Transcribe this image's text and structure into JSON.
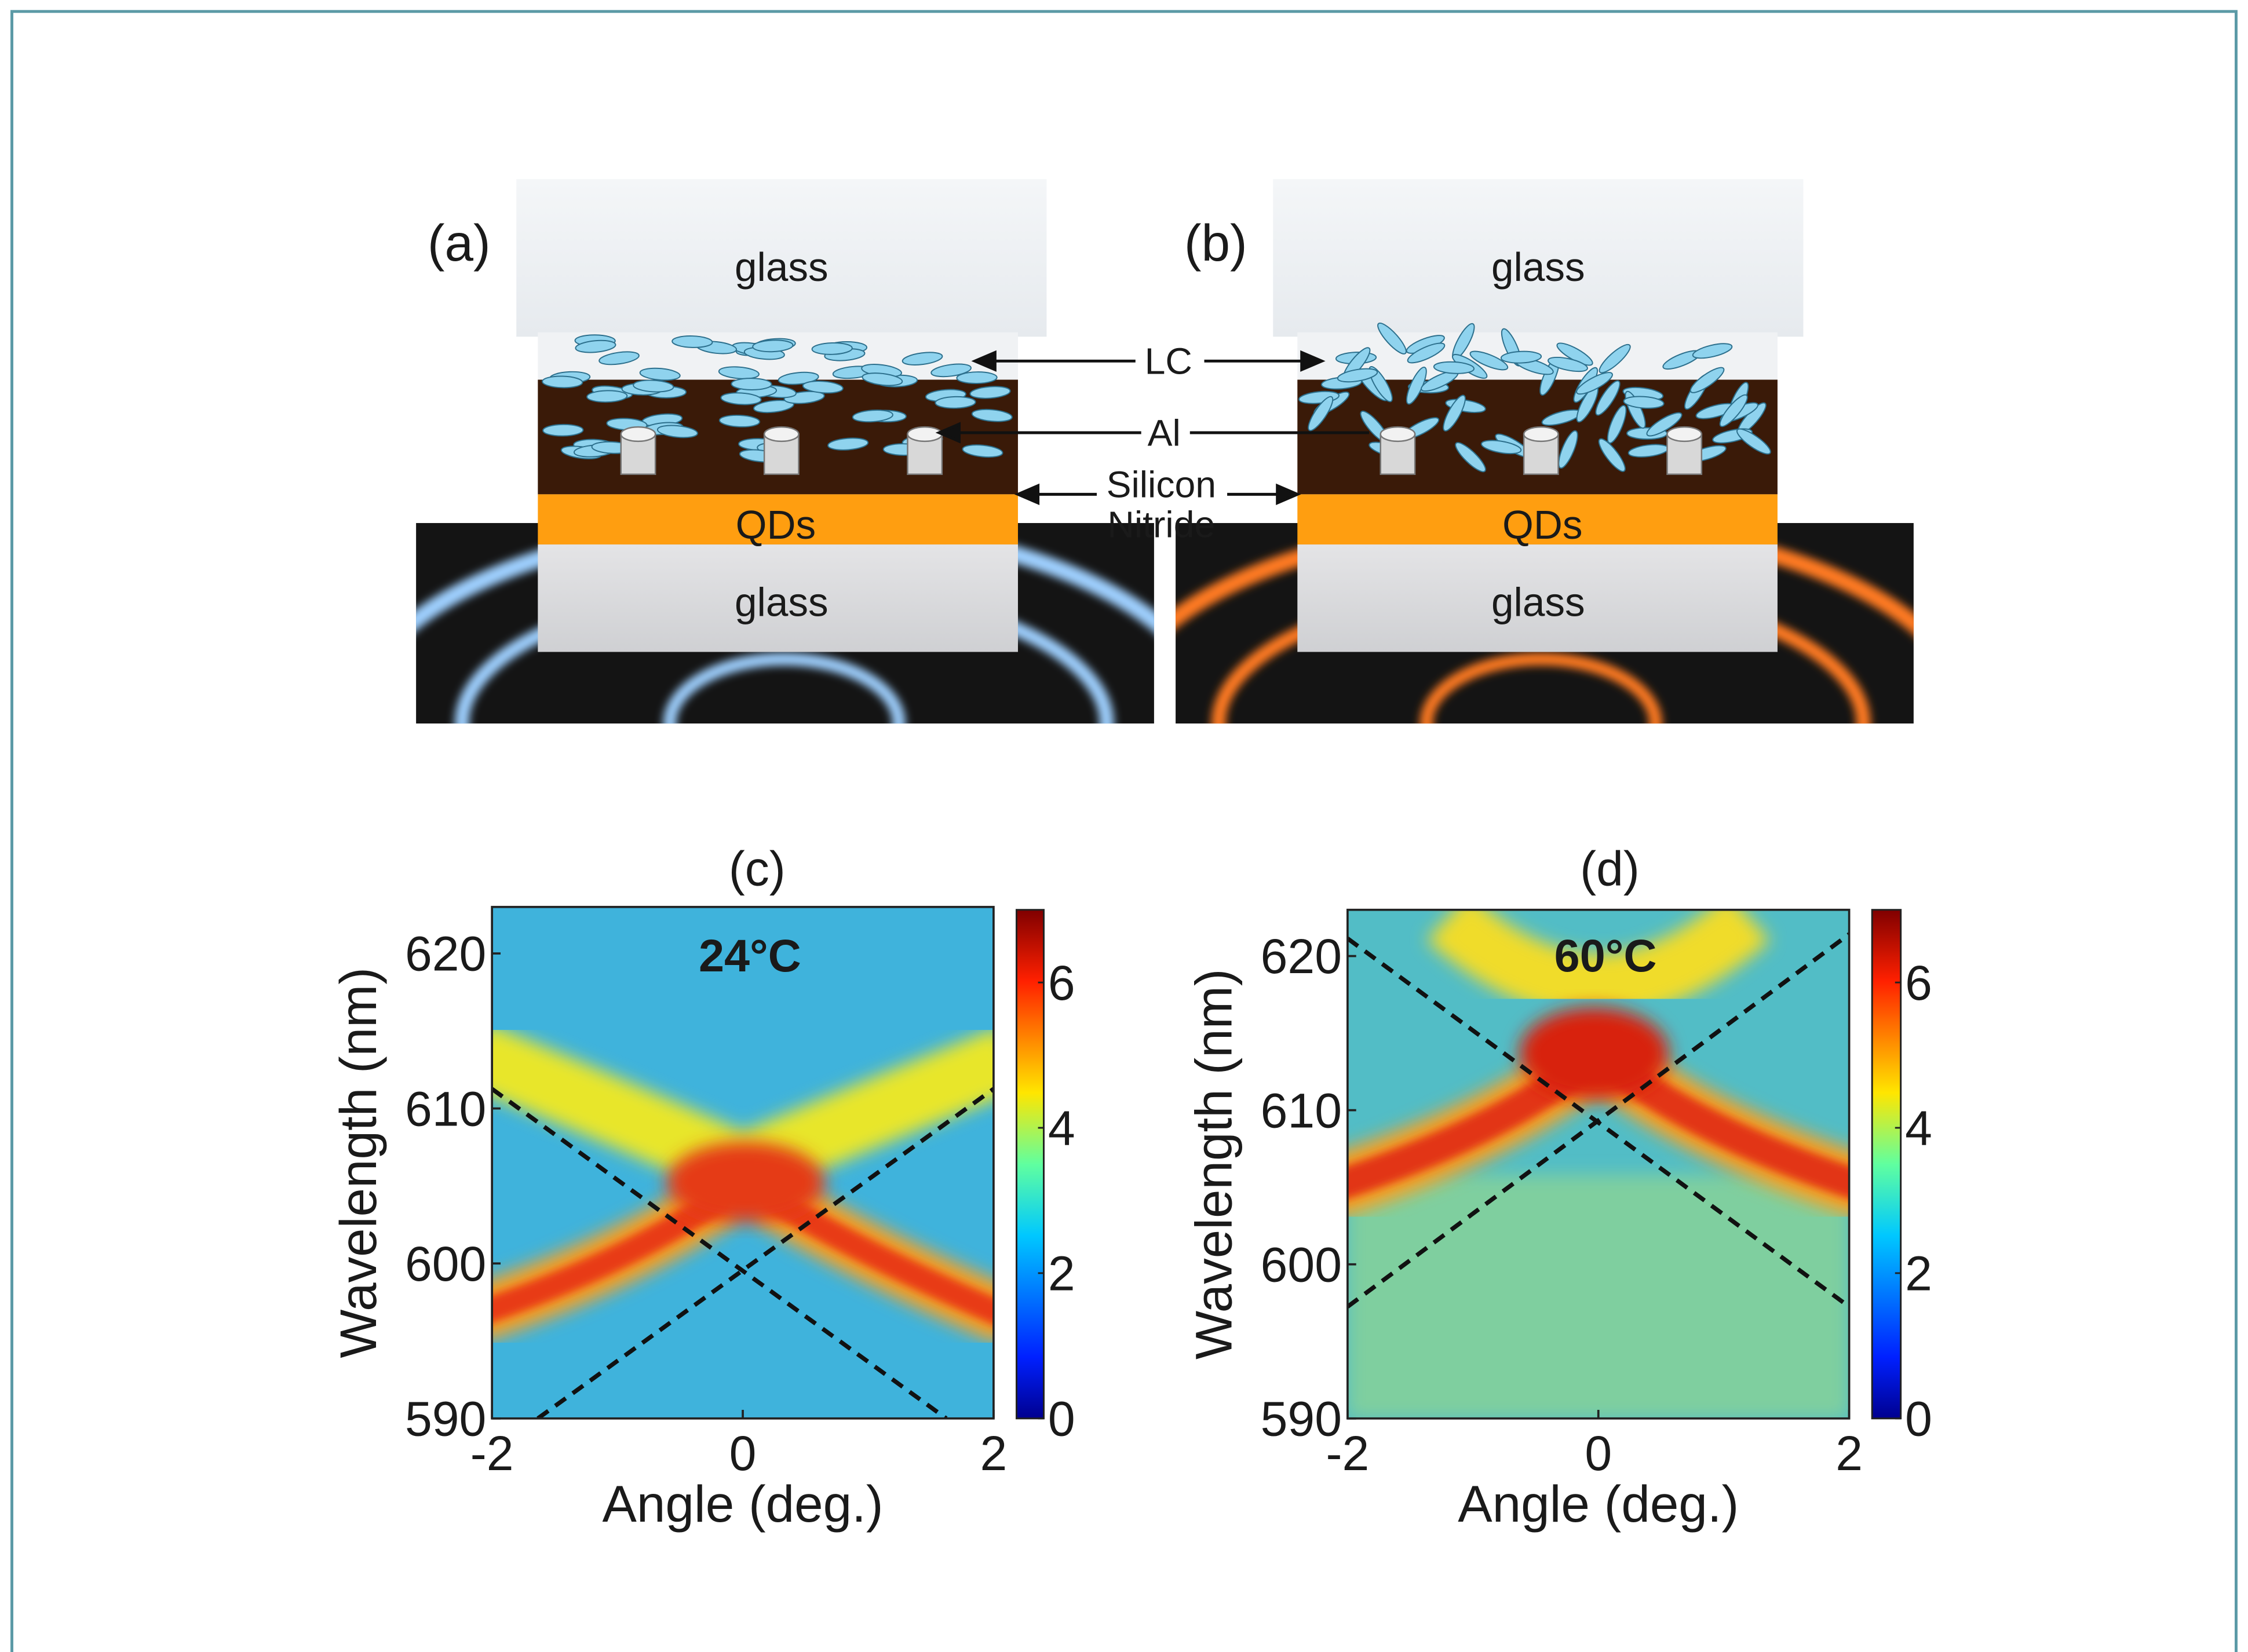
{
  "panels": [
    {
      "label": "(a)",
      "glass_top": "glass",
      "qds": "QDs",
      "glass_bottom": "glass"
    },
    {
      "label": "(b)",
      "glass_top": "glass",
      "qds": "QDs",
      "glass_bottom": "glass"
    }
  ],
  "annotations": {
    "lc": "LC",
    "al": "Al",
    "silicon": "Silicon",
    "nitride": "Nitride"
  },
  "chart_data": [
    {
      "type": "heatmap",
      "title": "(c)",
      "annotation": "24°C",
      "xlabel": "Angle (deg.)",
      "ylabel": "Wavelength (nm)",
      "xlim": [
        -2,
        2
      ],
      "xticks": [
        -2,
        0,
        2
      ],
      "ylim": [
        590,
        623
      ],
      "yticks": [
        590,
        600,
        610,
        620
      ],
      "colorbar": {
        "lim": [
          0,
          7
        ],
        "ticks": [
          0,
          2,
          4,
          6
        ]
      }
    },
    {
      "type": "heatmap",
      "title": "(d)",
      "annotation": "60°C",
      "xlabel": "Angle (deg.)",
      "ylabel": "Wavelength (nm)",
      "xlim": [
        -2,
        2
      ],
      "xticks": [
        -2,
        0,
        2
      ],
      "ylim": [
        590,
        623
      ],
      "yticks": [
        590,
        600,
        610,
        620
      ],
      "colorbar": {
        "lim": [
          0,
          7
        ],
        "ticks": [
          0,
          2,
          4,
          6
        ]
      }
    }
  ]
}
